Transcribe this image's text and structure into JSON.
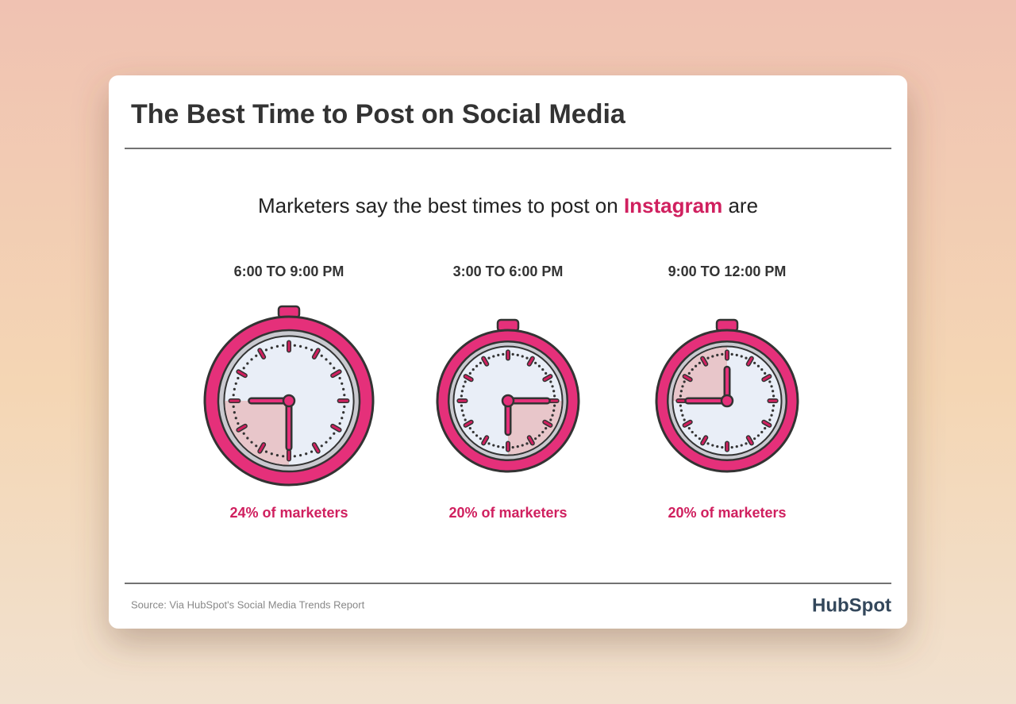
{
  "title": "The Best Time to Post on Social Media",
  "subtitle": {
    "lead": "Marketers say the best times to post on",
    "highlight": "Instagram",
    "tail": "are"
  },
  "clocks": [
    {
      "time": "6:00 TO 9:00 PM",
      "label": "24% of marketers"
    },
    {
      "time": "3:00 TO 6:00 PM",
      "label": "20% of marketers"
    },
    {
      "time": "9:00 TO 12:00 PM",
      "label": "20% of marketers"
    }
  ],
  "footer": {
    "source": "Source: Via HubSpot's Social Media Trends Report",
    "logo": "HubSpot"
  }
}
